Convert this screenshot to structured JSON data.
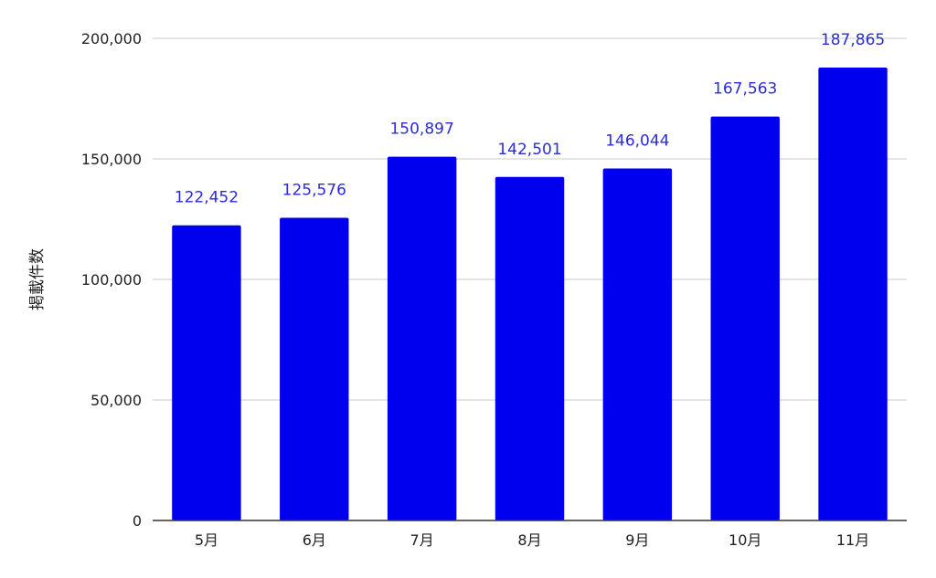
{
  "chart_data": {
    "type": "bar",
    "title": "",
    "xlabel": "",
    "ylabel": "掲載件数",
    "categories": [
      "5月",
      "6月",
      "7月",
      "8月",
      "9月",
      "10月",
      "11月"
    ],
    "series": [
      {
        "values": [
          122452,
          125576,
          150897,
          142501,
          146044,
          167563,
          187865
        ],
        "value_labels": [
          "122,452",
          "125,576",
          "150,897",
          "142,501",
          "146,044",
          "167,563",
          "187,865"
        ]
      }
    ],
    "ylim": [
      0,
      200000
    ],
    "yticks": [
      0,
      50000,
      100000,
      150000,
      200000
    ],
    "ytick_labels": [
      "0",
      "50,000",
      "100,000",
      "150,000",
      "200,000"
    ],
    "grid": true,
    "legend": "none",
    "colors": {
      "bar": "#0000ee",
      "data_label": "#2b2bd9"
    }
  }
}
